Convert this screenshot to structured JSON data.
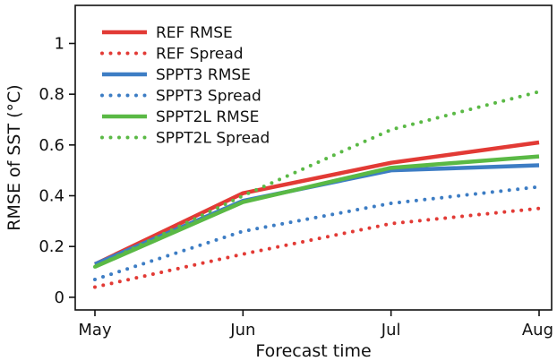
{
  "chart_data": {
    "type": "line",
    "xlabel": "Forecast time",
    "ylabel": "RMSE of SST (°C)",
    "categories": [
      "May",
      "Jun",
      "Jul",
      "Aug"
    ],
    "ylim": [
      -0.05,
      1.15
    ],
    "yticks": [
      0,
      0.2,
      0.4,
      0.6,
      0.8,
      1
    ],
    "ytick_labels": [
      "0",
      "0.2",
      "0.4",
      "0.6",
      "0.8",
      "1"
    ],
    "grid": false,
    "legend_position": "top-left",
    "series": [
      {
        "name": "REF RMSE",
        "color": "#e23a35",
        "style": "solid",
        "values": [
          0.13,
          0.41,
          0.53,
          0.61
        ]
      },
      {
        "name": "REF Spread",
        "color": "#e23a35",
        "style": "dotted",
        "values": [
          0.04,
          0.17,
          0.29,
          0.35
        ]
      },
      {
        "name": "SPPT3 RMSE",
        "color": "#3d7dc4",
        "style": "solid",
        "values": [
          0.13,
          0.38,
          0.5,
          0.52
        ]
      },
      {
        "name": "SPPT3 Spread",
        "color": "#3d7dc4",
        "style": "dotted",
        "values": [
          0.07,
          0.26,
          0.37,
          0.435
        ]
      },
      {
        "name": "SPPT2L RMSE",
        "color": "#5ab945",
        "style": "solid",
        "values": [
          0.12,
          0.375,
          0.51,
          0.555
        ]
      },
      {
        "name": "SPPT2L Spread",
        "color": "#5ab945",
        "style": "dotted",
        "values": [
          0.12,
          0.4,
          0.66,
          0.81
        ]
      }
    ]
  }
}
